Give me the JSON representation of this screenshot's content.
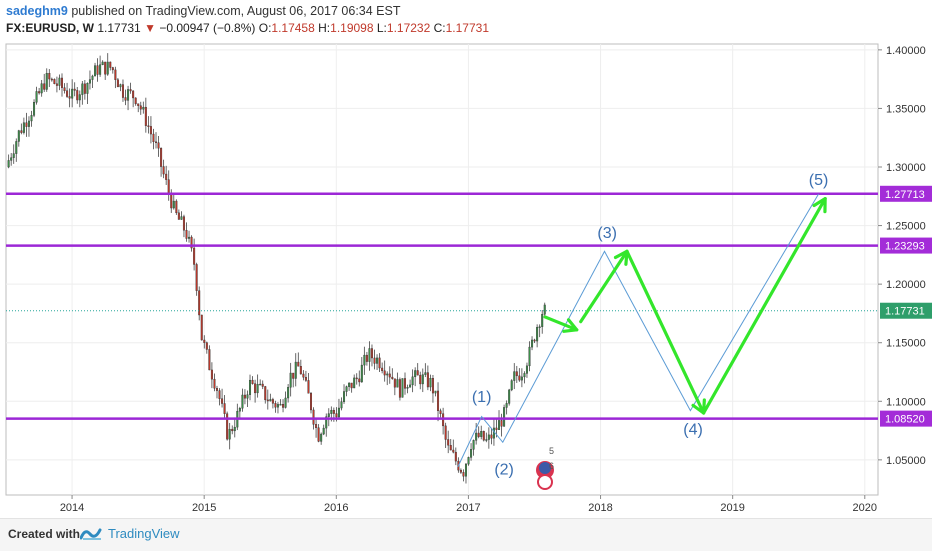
{
  "header": {
    "author": "sadeghm9",
    "published": " published on TradingView.com, August 06, 2017 06:34 EST",
    "symbol": "FX:EURUSD, W",
    "last": "1.17731",
    "change": "−0.00947 (−0.8%)",
    "o_label": "O:",
    "o_value": "1.17458",
    "h_label": "H:",
    "h_value": "1.19098",
    "l_label": "L:",
    "l_value": "1.17232",
    "c_label": "C:",
    "c_value": "1.17731"
  },
  "footer": {
    "created_with": "Created with",
    "brand": "TradingView"
  },
  "chart_data": {
    "type": "candlestick",
    "symbol": "FX:EURUSD",
    "interval": "W",
    "xlim": [
      2013.5,
      2020.1
    ],
    "ylim": [
      1.02,
      1.405
    ],
    "x_ticks": [
      "2014",
      "2015",
      "2016",
      "2017",
      "2018",
      "2019",
      "2020"
    ],
    "y_ticks": [
      "1.05000",
      "1.10000",
      "1.15000",
      "1.20000",
      "1.25000",
      "1.30000",
      "1.35000",
      "1.40000"
    ],
    "price_path": [
      [
        2013.52,
        1.3
      ],
      [
        2013.62,
        1.33
      ],
      [
        2013.72,
        1.35
      ],
      [
        2013.82,
        1.375
      ],
      [
        2013.92,
        1.37
      ],
      [
        2014.02,
        1.36
      ],
      [
        2014.12,
        1.37
      ],
      [
        2014.22,
        1.385
      ],
      [
        2014.32,
        1.385
      ],
      [
        2014.4,
        1.365
      ],
      [
        2014.5,
        1.36
      ],
      [
        2014.58,
        1.34
      ],
      [
        2014.66,
        1.315
      ],
      [
        2014.72,
        1.29
      ],
      [
        2014.8,
        1.26
      ],
      [
        2014.88,
        1.245
      ],
      [
        2014.95,
        1.215
      ],
      [
        2015.0,
        1.155
      ],
      [
        2015.06,
        1.13
      ],
      [
        2015.12,
        1.11
      ],
      [
        2015.2,
        1.07
      ],
      [
        2015.28,
        1.09
      ],
      [
        2015.36,
        1.115
      ],
      [
        2015.44,
        1.11
      ],
      [
        2015.52,
        1.1
      ],
      [
        2015.6,
        1.095
      ],
      [
        2015.66,
        1.12
      ],
      [
        2015.74,
        1.13
      ],
      [
        2015.82,
        1.1
      ],
      [
        2015.88,
        1.07
      ],
      [
        2015.95,
        1.09
      ],
      [
        2016.02,
        1.09
      ],
      [
        2016.1,
        1.11
      ],
      [
        2016.18,
        1.12
      ],
      [
        2016.26,
        1.14
      ],
      [
        2016.34,
        1.135
      ],
      [
        2016.42,
        1.125
      ],
      [
        2016.5,
        1.11
      ],
      [
        2016.58,
        1.12
      ],
      [
        2016.66,
        1.12
      ],
      [
        2016.74,
        1.115
      ],
      [
        2016.8,
        1.09
      ],
      [
        2016.86,
        1.06
      ],
      [
        2016.92,
        1.05
      ],
      [
        2016.98,
        1.04
      ],
      [
        2017.04,
        1.065
      ],
      [
        2017.1,
        1.07
      ],
      [
        2017.16,
        1.065
      ],
      [
        2017.22,
        1.075
      ],
      [
        2017.3,
        1.09
      ],
      [
        2017.36,
        1.12
      ],
      [
        2017.42,
        1.125
      ],
      [
        2017.48,
        1.14
      ],
      [
        2017.54,
        1.165
      ],
      [
        2017.58,
        1.177
      ]
    ],
    "last_price": 1.17731,
    "horizontal_levels": [
      {
        "price": 1.27713,
        "label": "1.27713"
      },
      {
        "price": 1.23293,
        "label": "1.23293"
      },
      {
        "price": 1.0852,
        "label": "1.08520"
      }
    ],
    "last_price_label": "1.17731",
    "wave_labels": [
      {
        "label": "(1)",
        "x": 2017.1,
        "y": 1.0995
      },
      {
        "label": "(2)",
        "x": 2017.27,
        "y": 1.0375
      },
      {
        "label": "(3)",
        "x": 2018.05,
        "y": 1.2395
      },
      {
        "label": "(4)",
        "x": 2018.7,
        "y": 1.0715
      },
      {
        "label": "(5)",
        "x": 2019.65,
        "y": 1.2845
      }
    ],
    "projection_path": [
      [
        2016.92,
        1.044
      ],
      [
        2017.1,
        1.087
      ],
      [
        2017.26,
        1.065
      ],
      [
        2018.03,
        1.228
      ],
      [
        2018.68,
        1.092
      ],
      [
        2019.65,
        1.277
      ]
    ],
    "arrow_path": [
      [
        2017.58,
        1.172
      ],
      [
        2017.82,
        1.161
      ],
      [
        2017.82,
        1.161
      ],
      [
        2017.85,
        1.168
      ],
      [
        2018.2,
        1.228
      ],
      [
        2018.78,
        1.09
      ],
      [
        2019.7,
        1.273
      ]
    ]
  }
}
